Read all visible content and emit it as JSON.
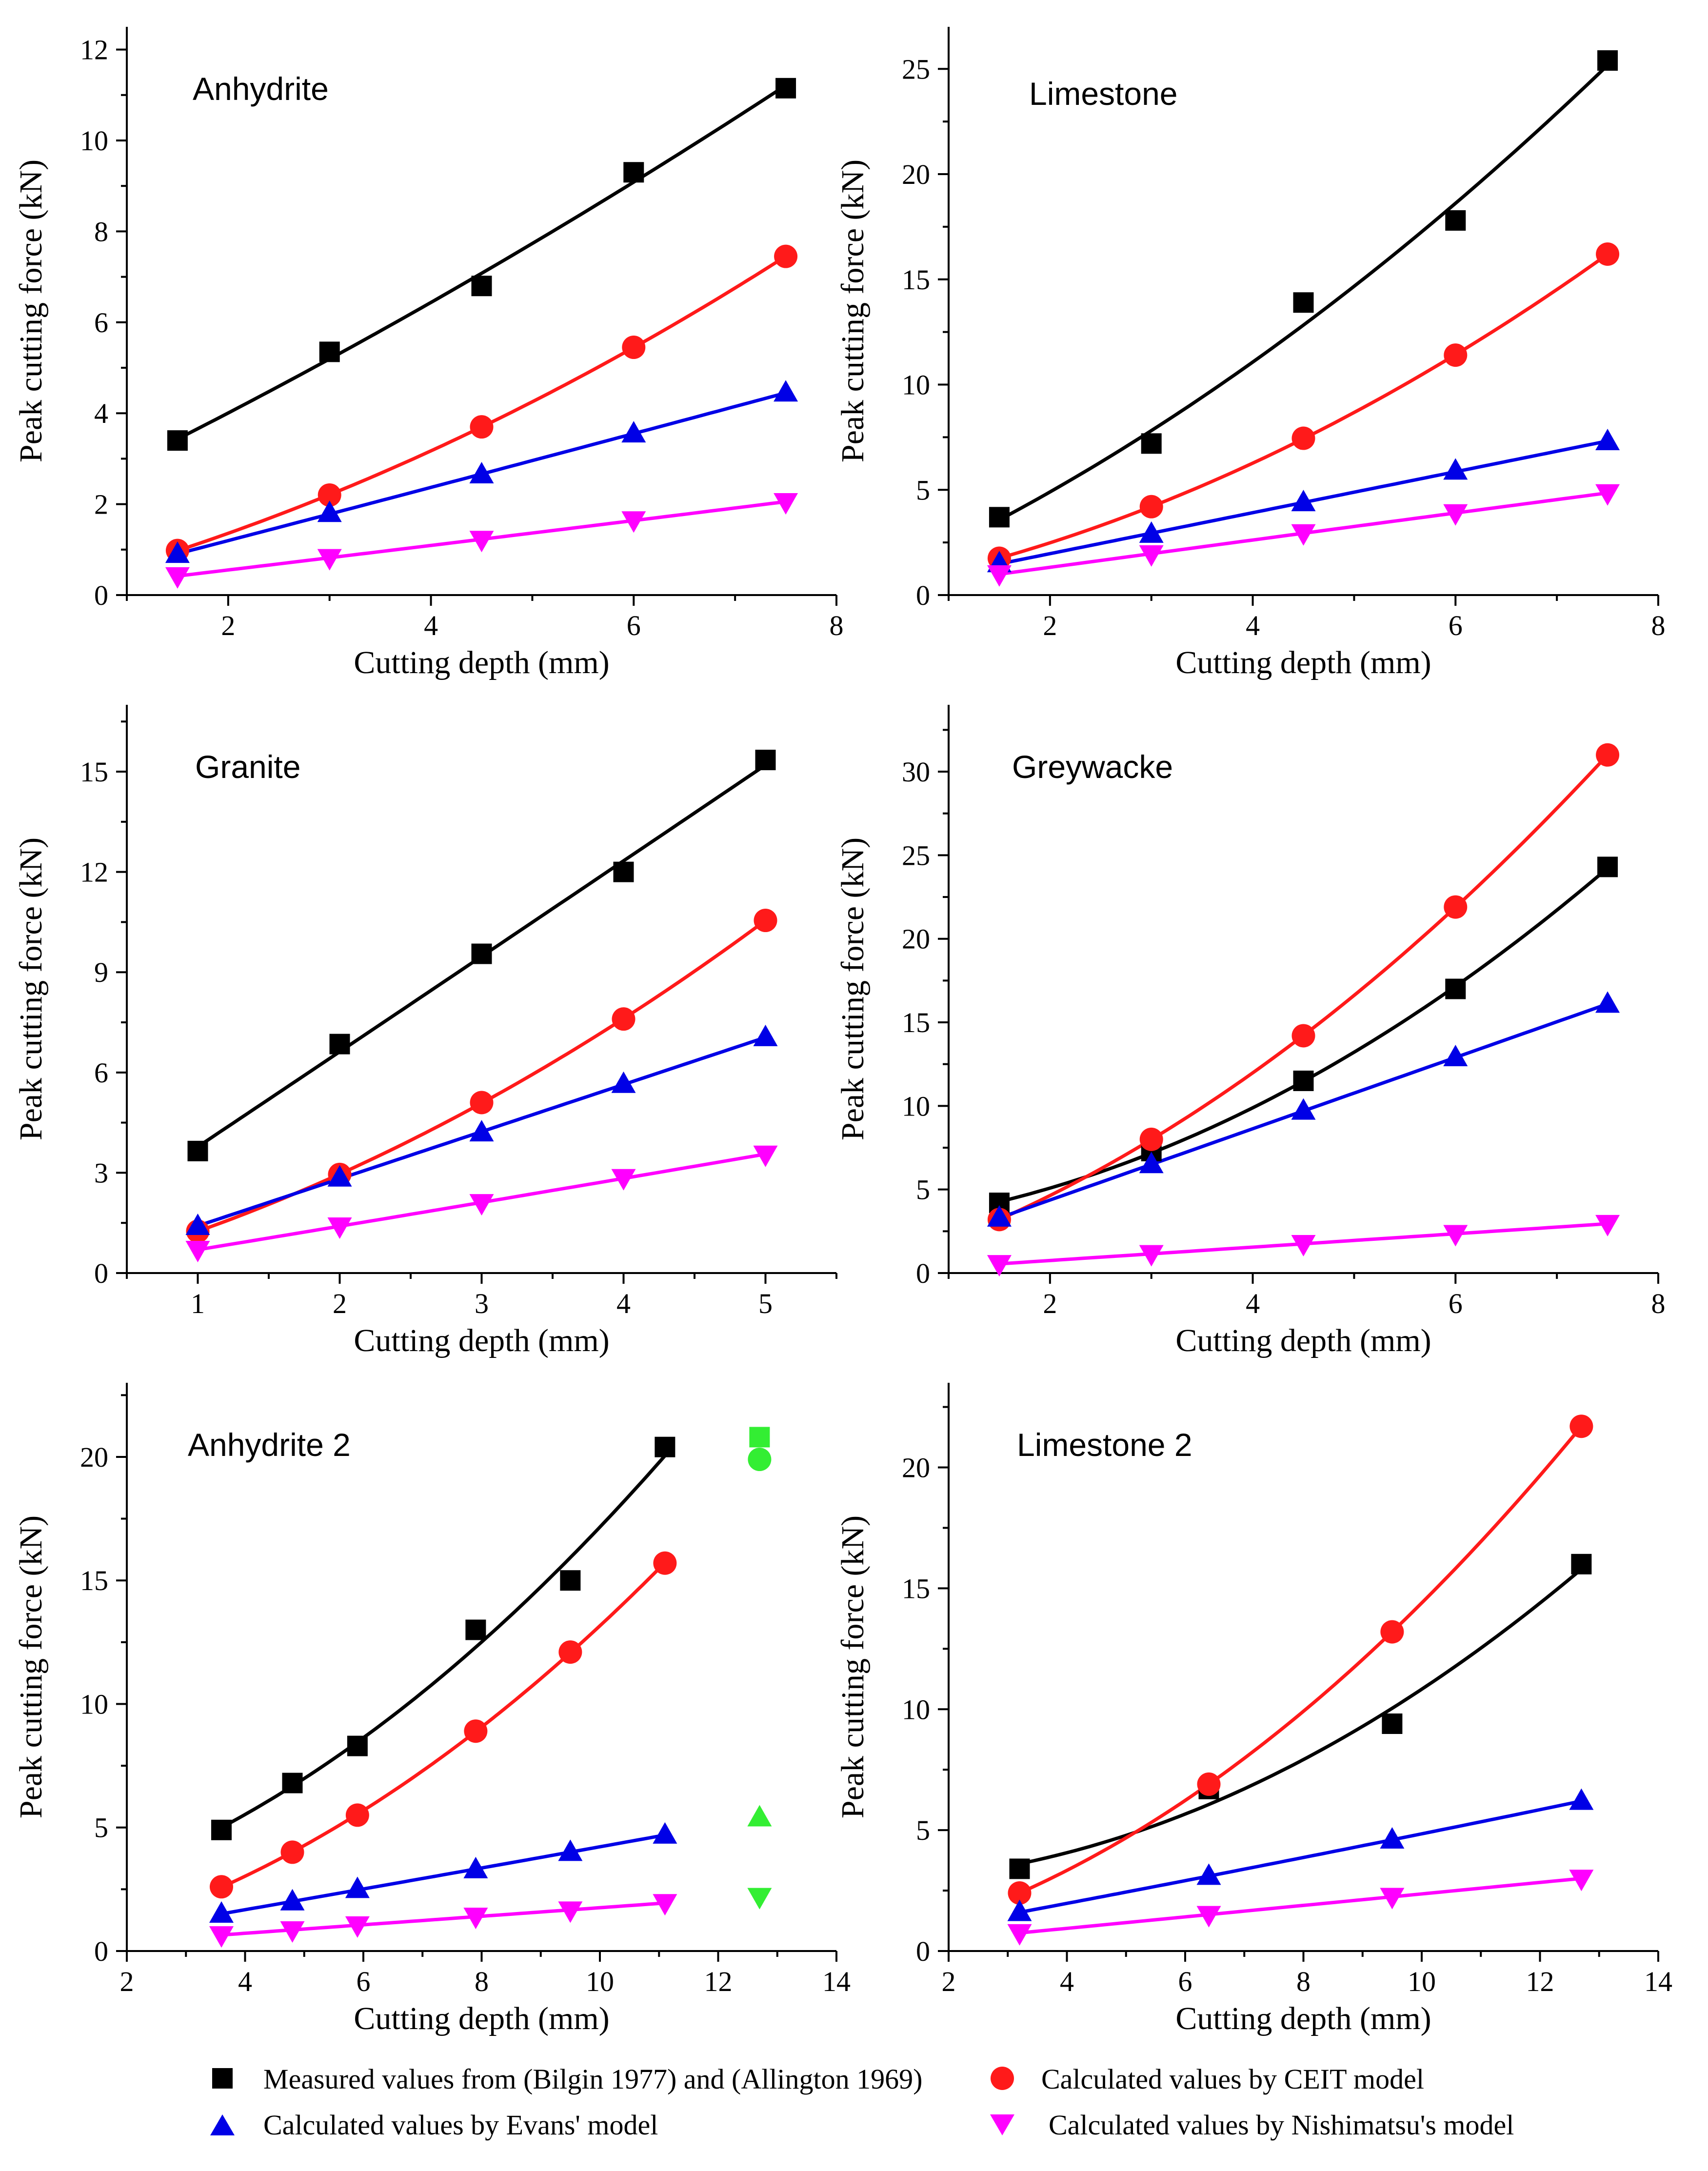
{
  "colors": {
    "measured": "#000000",
    "ceit": "#ff1a1a",
    "evans": "#0000e6",
    "nishimatsu": "#ff00ff",
    "highlight": "#33ee33"
  },
  "legend": [
    {
      "series": "measured",
      "marker": "square",
      "label": "Measured values from (Bilgin 1977) and (Allington 1969)"
    },
    {
      "series": "ceit",
      "marker": "circle",
      "label": "Calculated values by CEIT model"
    },
    {
      "series": "evans",
      "marker": "triangle-up",
      "label": "Calculated values by  Evans' model"
    },
    {
      "series": "nishimatsu",
      "marker": "triangle-down",
      "label": "Calculated values by Nishimatsu's model"
    }
  ],
  "chart_data": [
    {
      "type": "scatter",
      "title": "Anhydrite",
      "xlabel": "Cutting depth (mm)",
      "ylabel": "Peak cutting force (kN)",
      "xlim": [
        1,
        8
      ],
      "ylim": [
        0,
        12.5
      ],
      "xticks": [
        2,
        4,
        6,
        8
      ],
      "yticks": [
        0,
        2,
        4,
        6,
        8,
        10,
        12
      ],
      "x": [
        1.5,
        3,
        4.5,
        6,
        7.5
      ],
      "series": [
        {
          "name": "measured",
          "values": [
            3.4,
            5.35,
            6.8,
            9.3,
            11.15
          ]
        },
        {
          "name": "ceit",
          "values": [
            0.98,
            2.2,
            3.7,
            5.45,
            7.45
          ]
        },
        {
          "name": "evans",
          "values": [
            0.9,
            1.8,
            2.65,
            3.55,
            4.45
          ]
        },
        {
          "name": "nishimatsu",
          "values": [
            0.42,
            0.82,
            1.22,
            1.65,
            2.05
          ]
        }
      ],
      "extra_points": []
    },
    {
      "type": "scatter",
      "title": "Limestone",
      "xlabel": "Cutting depth (mm)",
      "ylabel": "Peak cutting force (kN)",
      "xlim": [
        1,
        8
      ],
      "ylim": [
        0,
        27
      ],
      "xticks": [
        2,
        4,
        6,
        8
      ],
      "yticks": [
        0,
        5,
        10,
        15,
        20,
        25
      ],
      "x": [
        1.5,
        3,
        4.5,
        6,
        7.5
      ],
      "series": [
        {
          "name": "measured",
          "values": [
            3.7,
            7.2,
            13.9,
            17.8,
            25.4
          ]
        },
        {
          "name": "ceit",
          "values": [
            1.75,
            4.2,
            7.45,
            11.4,
            16.2
          ]
        },
        {
          "name": "evans",
          "values": [
            1.5,
            2.9,
            4.4,
            5.9,
            7.3
          ]
        },
        {
          "name": "nishimatsu",
          "values": [
            1.0,
            1.95,
            2.95,
            3.9,
            4.85
          ]
        }
      ],
      "extra_points": []
    },
    {
      "type": "scatter",
      "title": "Granite",
      "xlabel": "Cutting depth (mm)",
      "ylabel": "Peak cutting force (kN)",
      "xlim": [
        0.5,
        5.5
      ],
      "ylim": [
        0,
        17
      ],
      "xticks": [
        1,
        2,
        3,
        4,
        5
      ],
      "yticks": [
        0,
        3,
        6,
        9,
        12,
        15
      ],
      "x": [
        1,
        2,
        3,
        4,
        5
      ],
      "series": [
        {
          "name": "measured",
          "values": [
            3.65,
            6.85,
            9.55,
            12.0,
            15.35
          ]
        },
        {
          "name": "ceit",
          "values": [
            1.25,
            2.95,
            5.1,
            7.6,
            10.55
          ]
        },
        {
          "name": "evans",
          "values": [
            1.4,
            2.85,
            4.2,
            5.65,
            7.05
          ]
        },
        {
          "name": "nishimatsu",
          "values": [
            0.7,
            1.4,
            2.1,
            2.85,
            3.55
          ]
        }
      ],
      "extra_points": []
    },
    {
      "type": "scatter",
      "title": "Greywacke",
      "xlabel": "Cutting depth (mm)",
      "ylabel": "Peak cutting force (kN)",
      "xlim": [
        1,
        8
      ],
      "ylim": [
        0,
        34
      ],
      "xticks": [
        2,
        4,
        6,
        8
      ],
      "yticks": [
        0,
        5,
        10,
        15,
        20,
        25,
        30
      ],
      "x": [
        1.5,
        3,
        4.5,
        6,
        7.5
      ],
      "series": [
        {
          "name": "measured",
          "values": [
            4.2,
            7.3,
            11.5,
            17.0,
            24.3
          ]
        },
        {
          "name": "ceit",
          "values": [
            3.2,
            8.0,
            14.2,
            21.9,
            31.0
          ]
        },
        {
          "name": "evans",
          "values": [
            3.3,
            6.5,
            9.7,
            12.9,
            16.1
          ]
        },
        {
          "name": "nishimatsu",
          "values": [
            0.55,
            1.15,
            1.75,
            2.35,
            2.95
          ]
        }
      ],
      "extra_points": []
    },
    {
      "type": "scatter",
      "title": "Anhydrite 2",
      "xlabel": "Cutting depth (mm)",
      "ylabel": "Peak cutting force (kN)",
      "xlim": [
        2,
        14
      ],
      "ylim": [
        0,
        23
      ],
      "xticks": [
        2,
        4,
        6,
        8,
        10,
        12,
        14
      ],
      "yticks": [
        0,
        5,
        10,
        15,
        20
      ],
      "x": [
        3.6,
        4.8,
        5.9,
        7.9,
        9.5,
        11.1
      ],
      "series": [
        {
          "name": "measured",
          "values": [
            4.9,
            6.8,
            8.3,
            13.0,
            15.0,
            20.4
          ]
        },
        {
          "name": "ceit",
          "values": [
            2.6,
            4.0,
            5.5,
            8.9,
            12.1,
            15.7
          ]
        },
        {
          "name": "evans",
          "values": [
            1.5,
            2.0,
            2.5,
            3.3,
            4.0,
            4.7
          ]
        },
        {
          "name": "nishimatsu",
          "values": [
            0.65,
            0.85,
            1.05,
            1.4,
            1.65,
            1.95
          ]
        }
      ],
      "extra_points": [
        {
          "marker": "square",
          "x": 12.7,
          "y": 20.8
        },
        {
          "marker": "circle",
          "x": 12.7,
          "y": 19.9
        },
        {
          "marker": "triangle-up",
          "x": 12.7,
          "y": 5.4
        },
        {
          "marker": "triangle-down",
          "x": 12.7,
          "y": 2.2
        }
      ]
    },
    {
      "type": "scatter",
      "title": "Limestone 2",
      "xlabel": "Cutting depth (mm)",
      "ylabel": "Peak cutting force (kN)",
      "xlim": [
        2,
        14
      ],
      "ylim": [
        0,
        23.5
      ],
      "xticks": [
        2,
        4,
        6,
        8,
        10,
        12,
        14
      ],
      "yticks": [
        0,
        5,
        10,
        15,
        20
      ],
      "x": [
        3.2,
        6.4,
        9.5,
        12.7
      ],
      "series": [
        {
          "name": "measured",
          "values": [
            3.4,
            6.7,
            9.4,
            16.0
          ]
        },
        {
          "name": "ceit",
          "values": [
            2.4,
            6.9,
            13.2,
            21.7
          ]
        },
        {
          "name": "evans",
          "values": [
            1.6,
            3.1,
            4.6,
            6.2
          ]
        },
        {
          "name": "nishimatsu",
          "values": [
            0.75,
            1.5,
            2.25,
            3.0
          ]
        }
      ],
      "extra_points": []
    }
  ]
}
